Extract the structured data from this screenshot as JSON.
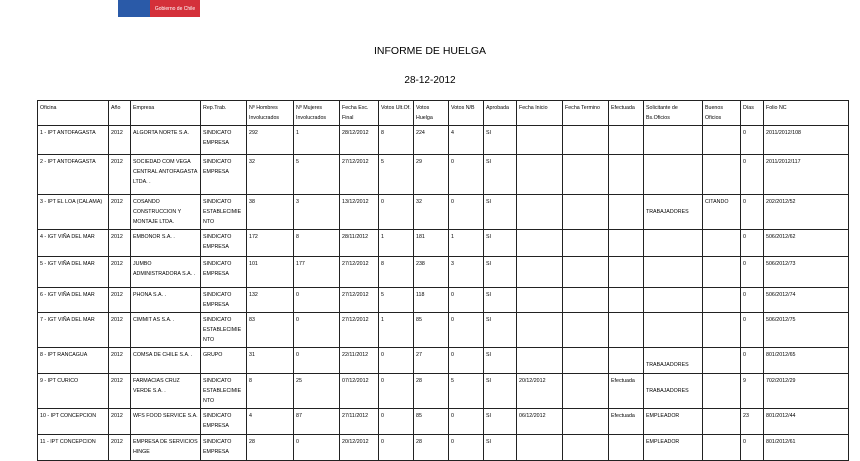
{
  "header": {
    "logo_text": "Gobierno de Chile",
    "title": "INFORME DE HUELGA",
    "date": "28-12-2012",
    "brand_colors": {
      "blue": "#2a5aa8",
      "red": "#d4303a"
    }
  },
  "table": {
    "columns": [
      "Oficina",
      "Año",
      "Empresa",
      "Rep.Trab.",
      "Nº Hombres Involucrados",
      "Nº Mujeres Involucrados",
      "Fecha Exc. Final",
      "Votos Ult.Of.",
      "Votos Huelga",
      "Votos N/B",
      "Aprobada",
      "Fecha Inicio",
      "Fecha Termino",
      "Efectuada",
      "Solicitante de Bs.Oficios",
      "Buenos Oficios",
      "Días",
      "Folio NC"
    ],
    "rows": [
      [
        "1 - IPT ANTOFAGASTA",
        "2012",
        "ALGORTA NORTE S.A.",
        "SINDICATO EMPRESA",
        "292",
        "1",
        "28/12/2012",
        "8",
        "224",
        "4",
        "SI",
        "",
        "",
        "",
        "",
        "",
        "0",
        "2011/2012/108"
      ],
      [
        "2 - IPT ANTOFAGASTA",
        "2012",
        "SOCIEDAD COM VEGA CENTRAL ANTOFAGASTA LTDA. .",
        "SINDICATO EMPRESA",
        "32",
        "5",
        "27/12/2012",
        "5",
        "29",
        "0",
        "SI",
        "",
        "",
        "",
        "",
        "",
        "0",
        "2011/2012/117"
      ],
      [
        "3 - IPT EL LOA (CALAMA)",
        "2012",
        "COSANDO CONSTRUCCION Y MONTAJE LTDA.",
        "SINDICATO ESTABLECIMIENTO",
        "38",
        "3",
        "13/12/2012",
        "0",
        "32",
        "0",
        "SI",
        "",
        "",
        "",
        "TRABAJADORES",
        "CITANDO",
        "0",
        "202/2012/52"
      ],
      [
        "4 - IGT VIÑA DEL MAR",
        "2012",
        "EMBONOR S.A. .",
        "SINDICATO EMPRESA",
        "172",
        "8",
        "28/11/2012",
        "1",
        "181",
        "1",
        "SI",
        "",
        "",
        "",
        "",
        "",
        "0",
        "506/2012/62"
      ],
      [
        "5 - IGT VIÑA DEL MAR",
        "2012",
        "JUMBO ADMINISTRADORA S.A. .",
        "SINDICATO EMPRESA",
        "101",
        "177",
        "27/12/2012",
        "8",
        "238",
        "3",
        "SI",
        "",
        "",
        "",
        "",
        "",
        "0",
        "506/2012/73"
      ],
      [
        "6 - IGT VIÑA DEL MAR",
        "2012",
        "PHONA S.A. .",
        "SINDICATO EMPRESA",
        "132",
        "0",
        "27/12/2012",
        "5",
        "118",
        "0",
        "SI",
        "",
        "",
        "",
        "",
        "",
        "0",
        "506/2012/74"
      ],
      [
        "7 - IGT VIÑA DEL MAR",
        "2012",
        "CIMMIT AS S.A. .",
        "SINDICATO ESTABLECIMIENTO",
        "83",
        "0",
        "27/12/2012",
        "1",
        "85",
        "0",
        "SI",
        "",
        "",
        "",
        "",
        "",
        "0",
        "506/2012/75"
      ],
      [
        "8 - IPT RANCAGUA",
        "2012",
        "COMSA DE CHILE S.A. .",
        "GRUPO",
        "31",
        "0",
        "22/11/2012",
        "0",
        "27",
        "0",
        "SI",
        "",
        "",
        "",
        "TRABAJADORES",
        "",
        "0",
        "801/2012/65"
      ],
      [
        "9 - IPT CURICO",
        "2012",
        "FARMACIAS CRUZ VERDE S.A. .",
        "SINDICATO ESTABLECIMIENTO",
        "8",
        "25",
        "07/12/2012",
        "0",
        "28",
        "5",
        "SI",
        "20/12/2012",
        "",
        "Efectuada",
        "TRABAJADORES",
        "",
        "9",
        "702/2012/29"
      ],
      [
        "10 - IPT CONCEPCION",
        "2012",
        "WFS FOOD SERVICE S.A.",
        "SINDICATO EMPRESA",
        "4",
        "87",
        "27/11/2012",
        "0",
        "85",
        "0",
        "SI",
        "06/12/2012",
        "",
        "Efectuada",
        "EMPLEADOR",
        "",
        "23",
        "801/2012/44"
      ],
      [
        "11 - IPT CONCEPCION",
        "2012",
        "EMPRESA DE SERVICIOS HINGE",
        "SINDICATO EMPRESA",
        "28",
        "0",
        "20/12/2012",
        "0",
        "28",
        "0",
        "SI",
        "",
        "",
        "",
        "EMPLEADOR",
        "",
        "0",
        "801/2012/61"
      ]
    ]
  }
}
